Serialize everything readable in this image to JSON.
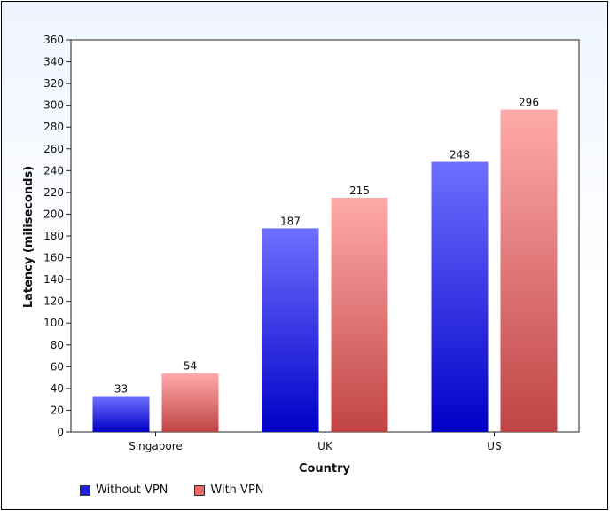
{
  "chart_data": {
    "type": "bar",
    "categories": [
      "Singapore",
      "UK",
      "US"
    ],
    "series": [
      {
        "name": "Without VPN",
        "values": [
          33,
          187,
          248
        ],
        "color": "#2222dd"
      },
      {
        "name": "With VPN",
        "values": [
          54,
          215,
          296
        ],
        "color": "#e06666"
      }
    ],
    "xlabel": "Country",
    "ylabel": "Latency (miliseconds)",
    "ylim": [
      0,
      360
    ],
    "yticks": [
      0,
      20,
      40,
      60,
      80,
      100,
      120,
      140,
      160,
      180,
      200,
      220,
      240,
      260,
      280,
      300,
      320,
      340,
      360
    ],
    "grid": false,
    "legend_position": "bottom-left",
    "data_labels": true
  }
}
